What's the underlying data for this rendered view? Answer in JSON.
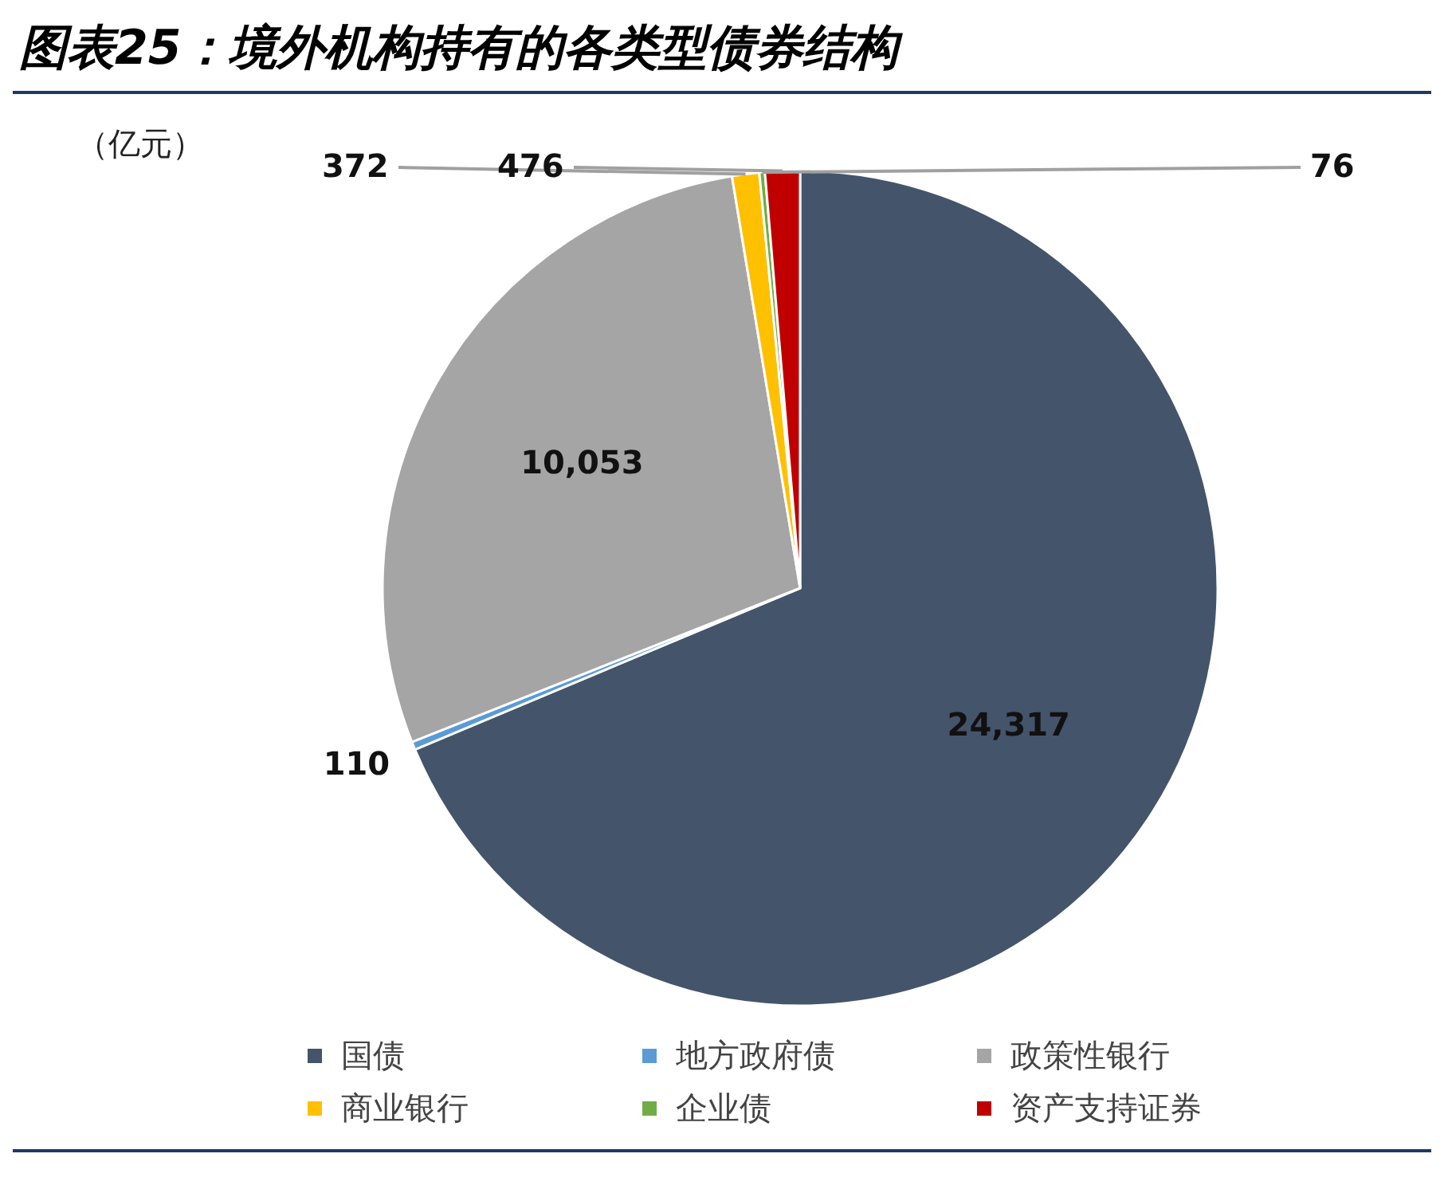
{
  "chart_data": {
    "type": "pie",
    "title": "图表25：境外机构持有的各类型债券结构",
    "categories": [
      "国债",
      "地方政府债",
      "政策性银行",
      "商业银行",
      "企业债",
      "资产支持证券"
    ],
    "values": [
      24317,
      110,
      10053,
      372,
      76,
      476
    ],
    "value_labels": [
      "24,317",
      "110",
      "10,053",
      "372",
      "76",
      "476"
    ],
    "colors": [
      "#44546a",
      "#5b9bd5",
      "#a5a5a5",
      "#ffc000",
      "#70ad47",
      "#c00000"
    ],
    "legend": "bottom",
    "annotations": [
      "（亿元）"
    ]
  }
}
